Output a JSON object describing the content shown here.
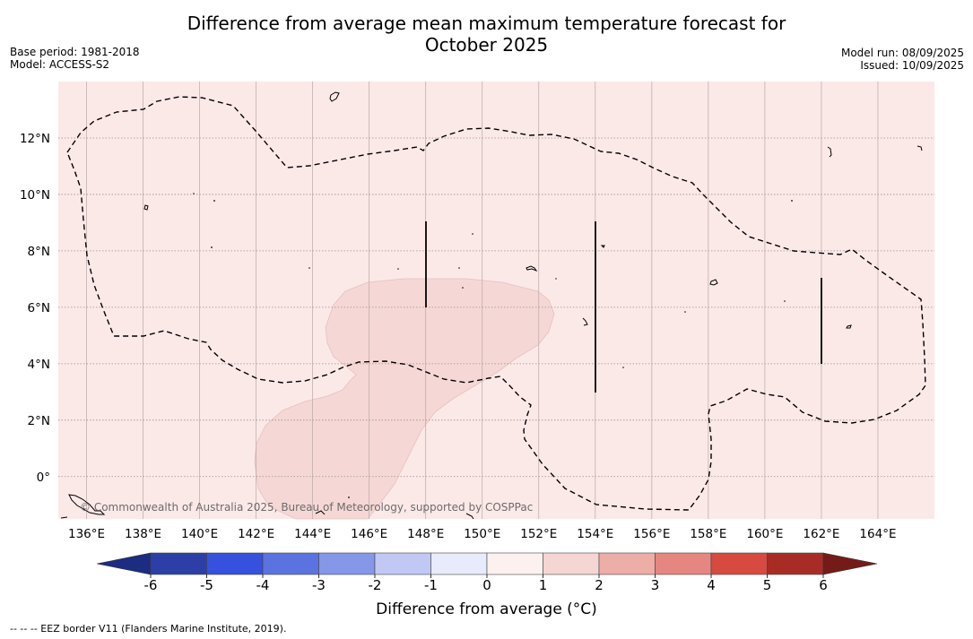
{
  "title_line1": "Difference from average mean maximum temperature forecast for",
  "title_line2": "October 2025",
  "base_period": "Base period: 1981-2018",
  "model": "Model: ACCESS-S2",
  "model_run": "Model run: 08/09/2025",
  "issued": "Issued: 10/09/2025",
  "copyright": "© Commonwealth of Australia 2025, Bureau of Meteorology, supported by COSPPac",
  "footnote": "--  --  -- EEZ border V11 (Flanders Marine Institute, 2019).",
  "map": {
    "lon_range": [
      135.0,
      166.0
    ],
    "lat_range": [
      -1.5,
      14.0
    ],
    "lon_ticks": [
      "136°E",
      "138°E",
      "140°E",
      "142°E",
      "144°E",
      "146°E",
      "148°E",
      "150°E",
      "152°E",
      "154°E",
      "156°E",
      "158°E",
      "160°E",
      "162°E",
      "164°E"
    ],
    "lat_ticks": [
      "0°",
      "2°N",
      "4°N",
      "6°N",
      "8°N",
      "10°N",
      "12°N"
    ],
    "background_color": "#fbe9e8",
    "warm_region_color": "#f5d8d6",
    "grid": true
  },
  "colorbar": {
    "title": "Difference from average (°C)",
    "tick_labels": [
      "-6",
      "-5",
      "-4",
      "-3",
      "-2",
      "-1",
      "0",
      "1",
      "2",
      "3",
      "4",
      "5",
      "6"
    ],
    "colors": [
      "#2b3fa7",
      "#3551dd",
      "#5a73e0",
      "#8497e8",
      "#c1c8f3",
      "#e8ebfb",
      "#fdf1f0",
      "#f5d6d3",
      "#edaea8",
      "#e58680",
      "#d64a40",
      "#a82c25"
    ],
    "under_color": "#1c2c80",
    "over_color": "#741b18"
  }
}
